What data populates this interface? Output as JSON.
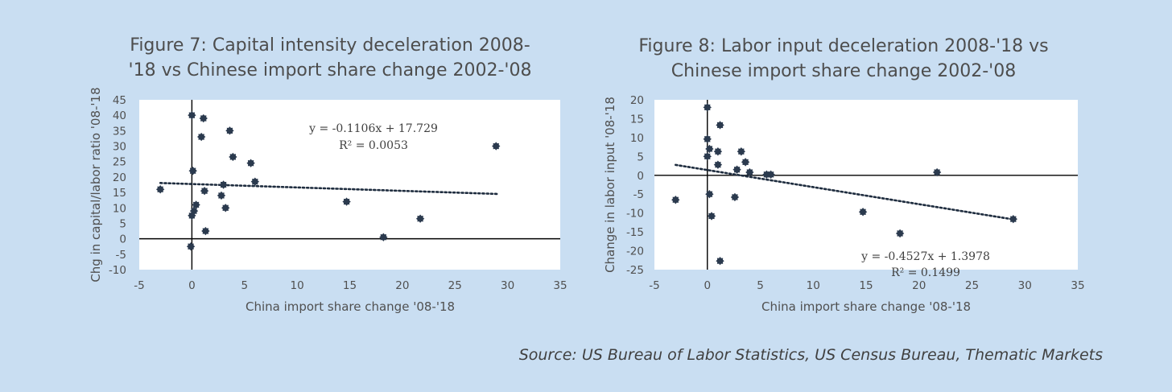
{
  "chart_data": [
    {
      "type": "scatter",
      "title_lines": [
        "Figure 7: Capital intensity deceleration 2008-",
        "'18 vs Chinese import share change 2002-'08"
      ],
      "xlabel": "China import share change '08-'18",
      "ylabel": "Chg in capital/labor ratio '08-'18",
      "xlim": [
        -5,
        35
      ],
      "ylim": [
        -10,
        45
      ],
      "xticks": [
        -5,
        0,
        5,
        10,
        15,
        20,
        25,
        30,
        35
      ],
      "yticks": [
        -10,
        -5,
        0,
        5,
        10,
        15,
        20,
        25,
        30,
        35,
        40,
        45
      ],
      "points": [
        [
          -3,
          16
        ],
        [
          0,
          40
        ],
        [
          1.1,
          39
        ],
        [
          0.9,
          33
        ],
        [
          3.6,
          35
        ],
        [
          3.9,
          26.5
        ],
        [
          5.6,
          24.5
        ],
        [
          6,
          18.5
        ],
        [
          0.1,
          22
        ],
        [
          3,
          17.5
        ],
        [
          1.2,
          15.5
        ],
        [
          2.8,
          14
        ],
        [
          0.4,
          11
        ],
        [
          0.2,
          9
        ],
        [
          3.2,
          10
        ],
        [
          0,
          7.5
        ],
        [
          1.3,
          2.5
        ],
        [
          -0.1,
          -2.5
        ],
        [
          14.7,
          12
        ],
        [
          18.2,
          0.5
        ],
        [
          21.7,
          6.5
        ],
        [
          28.9,
          30
        ]
      ],
      "trendline": {
        "slope": -0.1106,
        "intercept": 17.729,
        "x_range": [
          -3,
          29
        ]
      },
      "annotations": [
        "y = -0.1106x + 17.729",
        "R² = 0.0053"
      ],
      "grid": false
    },
    {
      "type": "scatter",
      "title_lines": [
        "Figure 8: Labor input deceleration 2008-'18 vs",
        "Chinese import share change 2002-'08"
      ],
      "xlabel": "China import share change '08-'18",
      "ylabel": "Change in labor input '08-'18",
      "xlim": [
        -5,
        35
      ],
      "ylim": [
        -25,
        20
      ],
      "xticks": [
        -5,
        0,
        5,
        10,
        15,
        20,
        25,
        30,
        35
      ],
      "yticks": [
        -25,
        -20,
        -15,
        -10,
        -5,
        0,
        5,
        10,
        15,
        20
      ],
      "points": [
        [
          -3,
          -6.5
        ],
        [
          0,
          18
        ],
        [
          1.2,
          13.3
        ],
        [
          0,
          9.6
        ],
        [
          0.2,
          7
        ],
        [
          1,
          6.3
        ],
        [
          3.2,
          6.3
        ],
        [
          0,
          5
        ],
        [
          3.6,
          3.5
        ],
        [
          1,
          2.8
        ],
        [
          2.8,
          1.5
        ],
        [
          4,
          0.8
        ],
        [
          5.6,
          0.2
        ],
        [
          6,
          0.2
        ],
        [
          0.2,
          -5
        ],
        [
          2.6,
          -5.8
        ],
        [
          0.4,
          -10.8
        ],
        [
          1.2,
          -22.7
        ],
        [
          14.7,
          -9.7
        ],
        [
          18.2,
          -15.4
        ],
        [
          21.7,
          0.8
        ],
        [
          28.9,
          -11.6
        ]
      ],
      "trendline": {
        "slope": -0.4527,
        "intercept": 1.3978,
        "x_range": [
          -3,
          29
        ]
      },
      "annotations": [
        "y = -0.4527x + 1.3978",
        "R² = 0.1499"
      ],
      "grid": false
    }
  ],
  "source": "Source: US Bureau of Labor Statistics, US Census Bureau, Thematic Markets",
  "colors": {
    "page_bg": "#c9def2",
    "plot_bg": "#ffffff",
    "marker": "#2b3a4e",
    "axis": "#000000",
    "trendline": "#1f2d3f"
  }
}
